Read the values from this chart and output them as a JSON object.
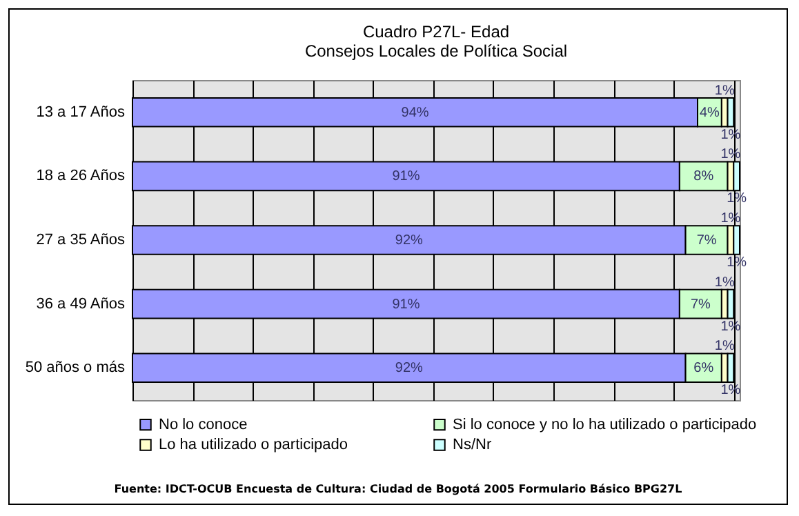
{
  "chart_data": {
    "type": "bar",
    "orientation": "horizontal",
    "stacked": true,
    "title": "Cuadro P27L- Edad",
    "subtitle": "Consejos Locales de Política Social",
    "categories": [
      "13 a 17 Años",
      "18 a 26 Años",
      "27 a 35 Años",
      "36 a 49 Años",
      "50 años o más"
    ],
    "series": [
      {
        "name": "No lo conoce",
        "color": "#9999ff",
        "values": [
          94,
          91,
          92,
          91,
          92
        ],
        "value_labels": [
          "94%",
          "91%",
          "92%",
          "91%",
          "92%"
        ]
      },
      {
        "name": "Si lo conoce y no lo ha utilizado o participado",
        "color": "#ccffcc",
        "values": [
          4,
          8,
          7,
          7,
          6
        ],
        "value_labels": [
          "4%",
          "8%",
          "7%",
          "7%",
          "6%"
        ]
      },
      {
        "name": "Lo ha utilizado o participado",
        "color": "#ffffcc",
        "values": [
          1,
          1,
          1,
          1,
          1
        ],
        "value_labels": [
          "1%",
          "1%",
          "1%",
          "1%",
          "1%"
        ]
      },
      {
        "name": "Ns/Nr",
        "color": "#ccffff",
        "values": [
          1,
          1,
          1,
          1,
          1
        ],
        "value_labels": [
          "1%",
          "1%",
          "1%",
          "1%",
          "1%"
        ]
      }
    ],
    "xlim": [
      0,
      101
    ],
    "xticks": [
      {
        "value": 0,
        "label": null
      },
      {
        "value": 10,
        "label": null
      },
      {
        "value": 20,
        "label": null
      },
      {
        "value": 30,
        "label": null
      },
      {
        "value": 40,
        "label": null
      },
      {
        "value": 50,
        "label": null
      },
      {
        "value": 60,
        "label": null
      },
      {
        "value": 70,
        "label": null
      },
      {
        "value": 80,
        "label": null
      },
      {
        "value": 90,
        "label": null
      },
      {
        "value": 100,
        "label": null
      }
    ],
    "tick_labels": "y",
    "grid": "x",
    "legend": "bottom",
    "annotations": [
      "Fuente: IDCT-OCUB Encuesta de Cultura: Ciudad de Bogotá 2005 Formulario Básico BPG27L"
    ]
  }
}
